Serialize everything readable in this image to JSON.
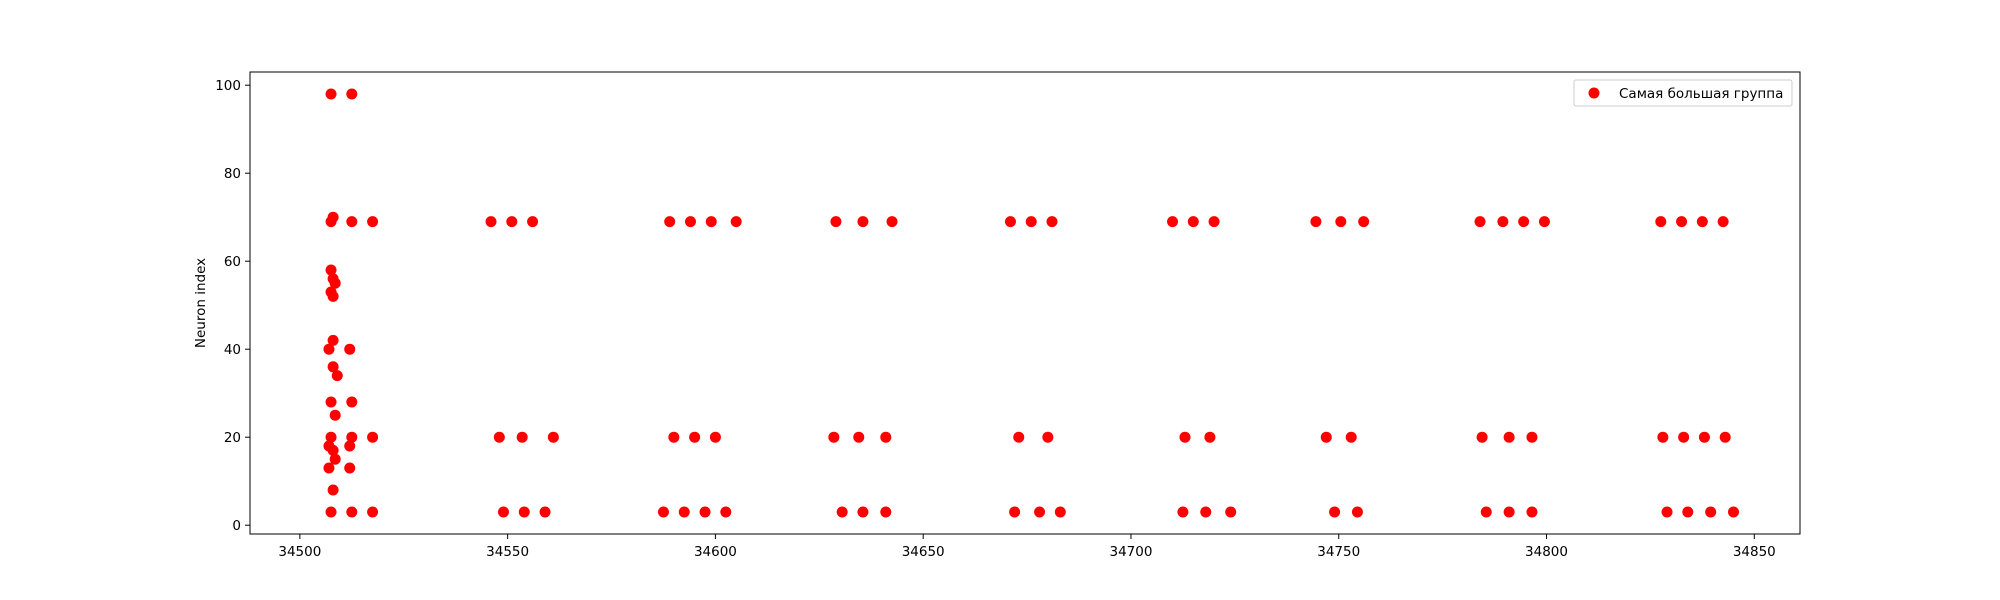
{
  "chart_data": {
    "type": "scatter",
    "title": "",
    "xlabel": "",
    "ylabel": "Neuron index",
    "xlim": [
      34488,
      34861
    ],
    "ylim": [
      -2,
      103
    ],
    "xticks": [
      34500,
      34550,
      34600,
      34650,
      34700,
      34750,
      34800,
      34850
    ],
    "yticks": [
      0,
      20,
      40,
      60,
      80,
      100
    ],
    "grid": false,
    "legend_position": "top-right",
    "series": [
      {
        "name": "Самая большая группа",
        "color": "#ff0000",
        "points": [
          [
            34507.5,
            98
          ],
          [
            34512.5,
            98
          ],
          [
            34507.5,
            69
          ],
          [
            34508,
            70
          ],
          [
            34512.5,
            69
          ],
          [
            34517.5,
            69
          ],
          [
            34507.5,
            58
          ],
          [
            34508,
            56
          ],
          [
            34508.5,
            55
          ],
          [
            34507.5,
            53
          ],
          [
            34508,
            52
          ],
          [
            34508,
            42
          ],
          [
            34507,
            40
          ],
          [
            34512,
            40
          ],
          [
            34508,
            36
          ],
          [
            34509,
            34
          ],
          [
            34507.5,
            28
          ],
          [
            34512.5,
            28
          ],
          [
            34508.5,
            25
          ],
          [
            34507.5,
            20
          ],
          [
            34512.5,
            20
          ],
          [
            34517.5,
            20
          ],
          [
            34507,
            18
          ],
          [
            34508,
            17
          ],
          [
            34512,
            18
          ],
          [
            34508.5,
            15
          ],
          [
            34507,
            13
          ],
          [
            34512,
            13
          ],
          [
            34508,
            8
          ],
          [
            34507.5,
            3
          ],
          [
            34512.5,
            3
          ],
          [
            34517.5,
            3
          ],
          [
            34546,
            69
          ],
          [
            34551,
            69
          ],
          [
            34556,
            69
          ],
          [
            34548,
            20
          ],
          [
            34553.5,
            20
          ],
          [
            34561,
            20
          ],
          [
            34549,
            3
          ],
          [
            34554,
            3
          ],
          [
            34559,
            3
          ],
          [
            34589,
            69
          ],
          [
            34594,
            69
          ],
          [
            34599,
            69
          ],
          [
            34605,
            69
          ],
          [
            34590,
            20
          ],
          [
            34595,
            20
          ],
          [
            34600,
            20
          ],
          [
            34587.5,
            3
          ],
          [
            34592.5,
            3
          ],
          [
            34597.5,
            3
          ],
          [
            34602.5,
            3
          ],
          [
            34629,
            69
          ],
          [
            34635.5,
            69
          ],
          [
            34642.5,
            69
          ],
          [
            34628.5,
            20
          ],
          [
            34634.5,
            20
          ],
          [
            34641,
            20
          ],
          [
            34630.5,
            3
          ],
          [
            34635.5,
            3
          ],
          [
            34641,
            3
          ],
          [
            34671,
            69
          ],
          [
            34676,
            69
          ],
          [
            34681,
            69
          ],
          [
            34673,
            20
          ],
          [
            34680,
            20
          ],
          [
            34672,
            3
          ],
          [
            34678,
            3
          ],
          [
            34683,
            3
          ],
          [
            34710,
            69
          ],
          [
            34715,
            69
          ],
          [
            34720,
            69
          ],
          [
            34713,
            20
          ],
          [
            34719,
            20
          ],
          [
            34712.5,
            3
          ],
          [
            34718,
            3
          ],
          [
            34724,
            3
          ],
          [
            34744.5,
            69
          ],
          [
            34750.5,
            69
          ],
          [
            34756,
            69
          ],
          [
            34747,
            20
          ],
          [
            34753,
            20
          ],
          [
            34749,
            3
          ],
          [
            34754.5,
            3
          ],
          [
            34784,
            69
          ],
          [
            34789.5,
            69
          ],
          [
            34794.5,
            69
          ],
          [
            34799.5,
            69
          ],
          [
            34784.5,
            20
          ],
          [
            34791,
            20
          ],
          [
            34796.5,
            20
          ],
          [
            34785.5,
            3
          ],
          [
            34791,
            3
          ],
          [
            34796.5,
            3
          ],
          [
            34827.5,
            69
          ],
          [
            34832.5,
            69
          ],
          [
            34837.5,
            69
          ],
          [
            34842.5,
            69
          ],
          [
            34828,
            20
          ],
          [
            34833,
            20
          ],
          [
            34838,
            20
          ],
          [
            34843,
            20
          ],
          [
            34829,
            3
          ],
          [
            34834,
            3
          ],
          [
            34839.5,
            3
          ],
          [
            34845,
            3
          ]
        ]
      }
    ]
  }
}
